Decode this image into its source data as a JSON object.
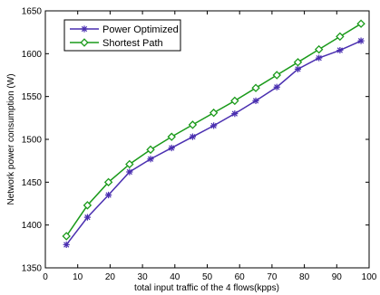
{
  "chart_data": {
    "type": "line",
    "title": "",
    "xlabel": "total input traffic of the 4 flows(kpps)",
    "ylabel": "Network power consumption (W)",
    "xlim": [
      0,
      100
    ],
    "ylim": [
      1350,
      1650
    ],
    "xticks": [
      0,
      10,
      20,
      30,
      40,
      50,
      60,
      70,
      80,
      90,
      100
    ],
    "yticks": [
      1350,
      1400,
      1450,
      1500,
      1550,
      1600,
      1650
    ],
    "grid": false,
    "legend_position": "top-left",
    "x": [
      6.5,
      13,
      19.5,
      26,
      32.5,
      39,
      45.5,
      52,
      58.5,
      65,
      71.5,
      78,
      84.5,
      91,
      97.5
    ],
    "series": [
      {
        "name": "Power Optimized",
        "color": "#4a2fb0",
        "marker": "star",
        "values": [
          1377,
          1409,
          1435,
          1462,
          1477,
          1490,
          1503,
          1516,
          1530,
          1545,
          1561,
          1582,
          1595,
          1604,
          1615
        ]
      },
      {
        "name": "Shortest Path",
        "color": "#1a9a1a",
        "marker": "diamond",
        "values": [
          1387,
          1423,
          1450,
          1471,
          1488,
          1503,
          1517,
          1531,
          1545,
          1560,
          1575,
          1590,
          1605,
          1620,
          1635
        ]
      }
    ]
  }
}
